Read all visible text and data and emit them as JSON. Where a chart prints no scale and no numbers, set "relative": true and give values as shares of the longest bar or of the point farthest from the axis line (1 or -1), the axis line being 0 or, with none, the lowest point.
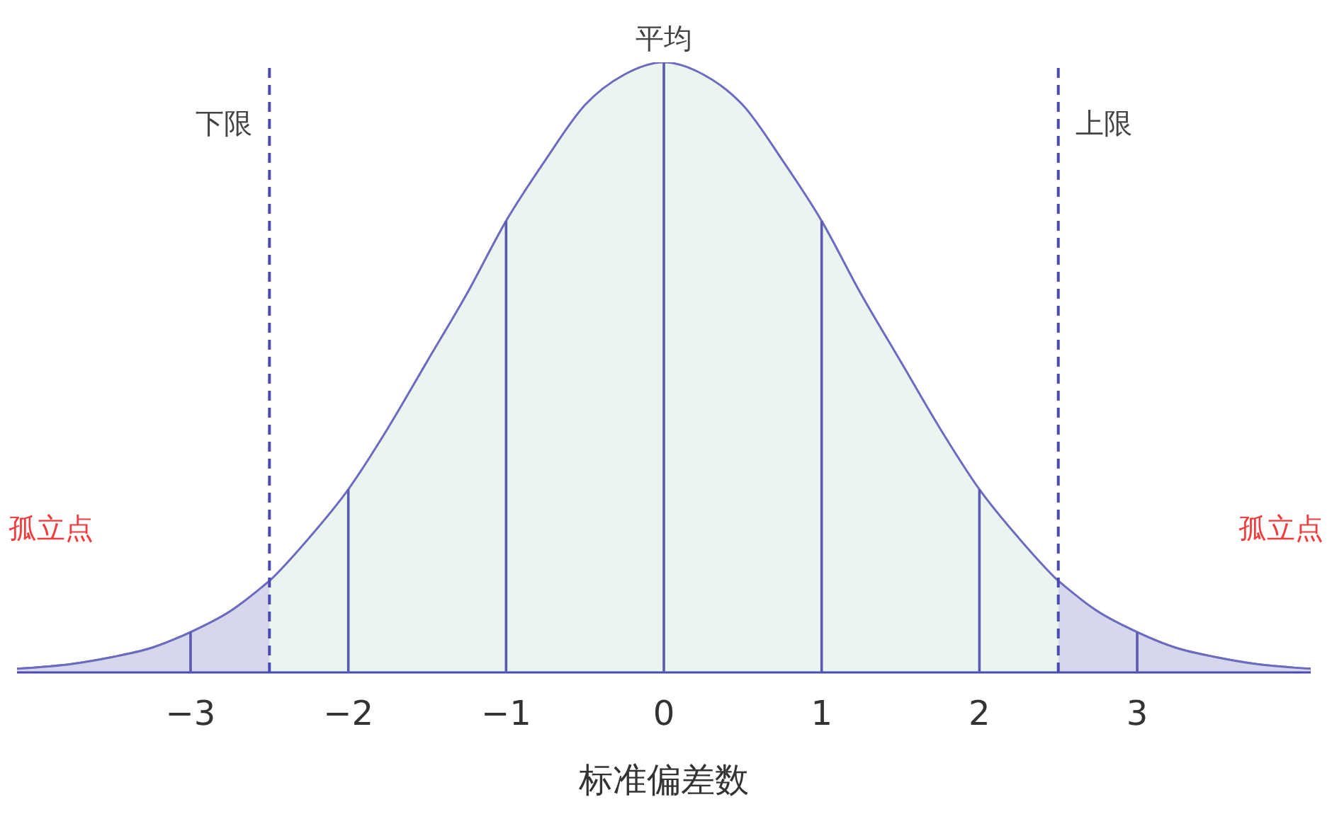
{
  "chart_data": {
    "type": "area",
    "relative": true,
    "xlabel": "标准偏差数",
    "xlim": [
      -4.1,
      4.1
    ],
    "xticks": [
      {
        "value": -3,
        "label": "−3"
      },
      {
        "value": -2,
        "label": "−2"
      },
      {
        "value": -1,
        "label": "−1"
      },
      0,
      1,
      2,
      3
    ],
    "grid": false,
    "legend": false,
    "series": [
      {
        "color": "#eaf5ef",
        "x": [
          -4.1,
          -3.75,
          -3.5,
          -3.25,
          -3,
          -2.75,
          -2.5,
          -2.25,
          -2,
          -1.75,
          -1.5,
          -1.25,
          -1,
          -0.75,
          -0.5,
          -0.25,
          0,
          0.25,
          0.5,
          0.75,
          1,
          1.25,
          1.5,
          1.75,
          2,
          2.25,
          2.5,
          2.75,
          3,
          3.25,
          3.5,
          3.75,
          4.1
        ],
        "values": [
          0.006,
          0.014,
          0.025,
          0.04,
          0.066,
          0.1,
          0.15,
          0.22,
          0.3,
          0.4,
          0.51,
          0.62,
          0.74,
          0.84,
          0.93,
          0.98,
          1,
          0.98,
          0.93,
          0.84,
          0.74,
          0.62,
          0.51,
          0.4,
          0.3,
          0.22,
          0.15,
          0.1,
          0.066,
          0.04,
          0.025,
          0.014,
          0.006
        ]
      },
      {
        "color": "#d6d6ec",
        "x": [
          -4.1,
          -3.75,
          -3.5,
          -3.25,
          -3,
          -2.75,
          -2.5
        ],
        "values": [
          0.006,
          0.014,
          0.025,
          0.04,
          0.066,
          0.1,
          0.15
        ]
      },
      {
        "color": "#d6d6ec",
        "x": [
          2.5,
          2.75,
          3,
          3.25,
          3.5,
          3.75,
          4.1
        ],
        "values": [
          0.15,
          0.1,
          0.066,
          0.04,
          0.025,
          0.014,
          0.006
        ]
      },
      {
        "type": "bar",
        "color": "#5a5ab0",
        "x": [
          -3,
          -2,
          -1,
          0,
          1,
          2,
          3
        ],
        "values": [
          0.066,
          0.3,
          0.74,
          1,
          0.74,
          0.3,
          0.066
        ]
      }
    ],
    "ref_lines": [
      {
        "axis": "x",
        "value": -2.5,
        "label": "下限",
        "color": "#4a4ab0",
        "line_style": "dashed"
      },
      {
        "axis": "x",
        "value": 2.5,
        "label": "上限",
        "color": "#4a4ab0",
        "line_style": "dashed"
      }
    ],
    "annotations": [
      {
        "text": "平均",
        "x": 0,
        "y": 1
      },
      "孤立点",
      "孤立点"
    ]
  }
}
